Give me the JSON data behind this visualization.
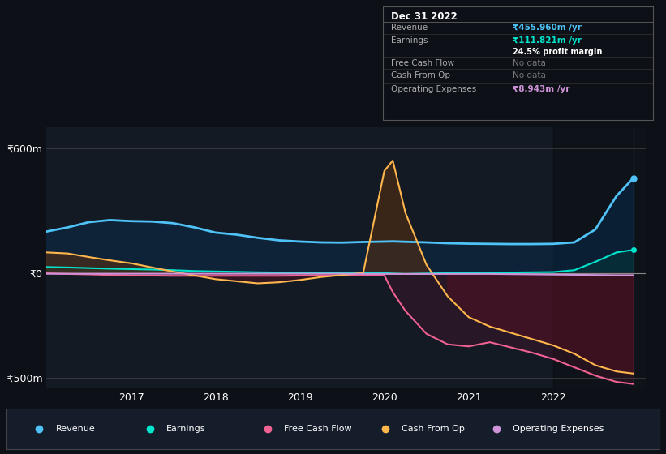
{
  "background_color": "#0d1117",
  "plot_bg_color": "#131a24",
  "ylim": [
    -550,
    700
  ],
  "ytick_labels": [
    "-₹500m",
    "₹0",
    "₹600m"
  ],
  "xtick_labels": [
    "2017",
    "2018",
    "2019",
    "2020",
    "2021",
    "2022"
  ],
  "colors": {
    "revenue": "#4fc3f7",
    "earnings": "#00e5cc",
    "free_cash_flow": "#f06292",
    "cash_from_op": "#ffb74d",
    "operating_expenses": "#ce93d8"
  },
  "tooltip": {
    "date": "Dec 31 2022",
    "revenue_label": "Revenue",
    "revenue_val": "₹455.960m /yr",
    "earnings_label": "Earnings",
    "earnings_val": "₹111.821m /yr",
    "profit_margin": "24.5% profit margin",
    "fcf_label": "Free Cash Flow",
    "fcf_val": "No data",
    "cfo_label": "Cash From Op",
    "cfo_val": "No data",
    "opex_label": "Operating Expenses",
    "opex_val": "₹8.943m /yr"
  },
  "legend": [
    {
      "label": "Revenue",
      "color": "#4fc3f7"
    },
    {
      "label": "Earnings",
      "color": "#00e5cc"
    },
    {
      "label": "Free Cash Flow",
      "color": "#f06292"
    },
    {
      "label": "Cash From Op",
      "color": "#ffb74d"
    },
    {
      "label": "Operating Expenses",
      "color": "#ce93d8"
    }
  ],
  "time_points": [
    2016.0,
    2016.25,
    2016.5,
    2016.75,
    2017.0,
    2017.25,
    2017.5,
    2017.75,
    2018.0,
    2018.25,
    2018.5,
    2018.75,
    2019.0,
    2019.25,
    2019.5,
    2019.75,
    2020.0,
    2020.1,
    2020.25,
    2020.5,
    2020.75,
    2021.0,
    2021.25,
    2021.5,
    2021.75,
    2022.0,
    2022.25,
    2022.5,
    2022.75,
    2022.95
  ],
  "revenue": [
    200,
    220,
    245,
    255,
    250,
    248,
    240,
    220,
    195,
    185,
    170,
    158,
    152,
    148,
    147,
    150,
    152,
    153,
    151,
    148,
    144,
    142,
    141,
    140,
    140,
    141,
    148,
    210,
    370,
    456
  ],
  "earnings": [
    30,
    28,
    25,
    22,
    20,
    18,
    15,
    11,
    9,
    7,
    5,
    4,
    3,
    2,
    2,
    1,
    1,
    -1,
    -3,
    -1,
    1,
    2,
    3,
    4,
    5,
    6,
    15,
    55,
    100,
    112
  ],
  "free_cash_flow": [
    0,
    -3,
    -5,
    -8,
    -10,
    -11,
    -12,
    -12,
    -12,
    -12,
    -12,
    -12,
    -11,
    -11,
    -10,
    -10,
    -10,
    -90,
    -180,
    -290,
    -340,
    -350,
    -330,
    -355,
    -380,
    -410,
    -450,
    -490,
    -520,
    -530
  ],
  "cash_from_op": [
    100,
    95,
    78,
    62,
    48,
    28,
    8,
    -10,
    -28,
    -38,
    -48,
    -43,
    -32,
    -18,
    -8,
    2,
    490,
    540,
    290,
    40,
    -110,
    -210,
    -255,
    -285,
    -315,
    -345,
    -385,
    -440,
    -470,
    -480
  ],
  "operating_expenses": [
    -2,
    -2,
    -2,
    -2,
    -2,
    -2,
    -2,
    -2,
    -2,
    -2,
    -2,
    -2,
    -2,
    -2,
    -2,
    -3,
    -3,
    -3,
    -3,
    -3,
    -3,
    -3,
    -3,
    -4,
    -5,
    -6,
    -7,
    -8,
    -9,
    -9
  ]
}
